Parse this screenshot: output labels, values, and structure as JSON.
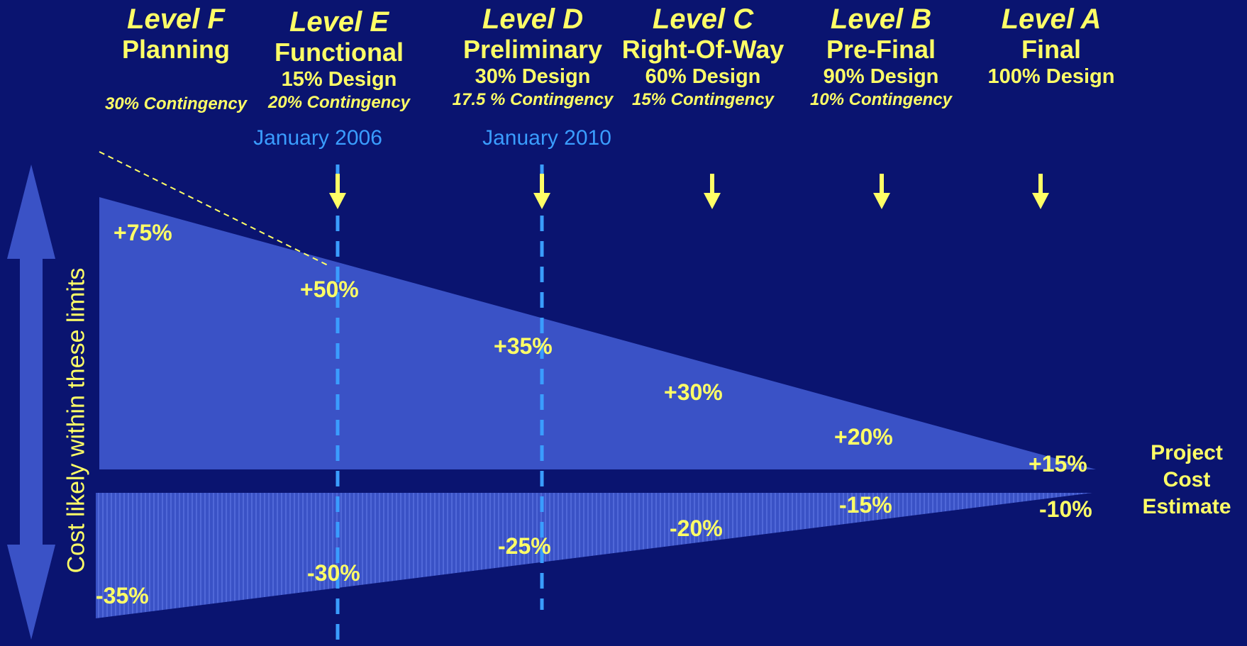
{
  "levels": [
    {
      "title": "Level F",
      "name": "Planning",
      "design": "",
      "contingency": "30% Contingency"
    },
    {
      "title": "Level E",
      "name": "Functional",
      "design": "15% Design",
      "contingency": "20% Contingency"
    },
    {
      "title": "Level D",
      "name": "Preliminary",
      "design": "30% Design",
      "contingency": "17.5 % Contingency"
    },
    {
      "title": "Level C",
      "name": "Right-Of-Way",
      "design": "60% Design",
      "contingency": "15% Contingency"
    },
    {
      "title": "Level B",
      "name": "Pre-Final",
      "design": "90% Design",
      "contingency": "10% Contingency"
    },
    {
      "title": "Level A",
      "name": "Final",
      "design": "100% Design",
      "contingency": ""
    }
  ],
  "dates": {
    "e": "January 2006",
    "d": "January 2010"
  },
  "upper_limits": [
    "+75%",
    "+50%",
    "+35%",
    "+30%",
    "+20%",
    "+15%"
  ],
  "lower_limits": [
    "-35%",
    "-30%",
    "-25%",
    "-20%",
    "-15%",
    "-10%"
  ],
  "project_cost": {
    "line1": "Project",
    "line2": "Cost",
    "line3": "Estimate"
  },
  "vertical_label": "Cost likely within these limits",
  "colors": {
    "background": "#0a1470",
    "band": "#3a52c6",
    "text": "#ffff66",
    "date": "#3a9dff"
  }
}
